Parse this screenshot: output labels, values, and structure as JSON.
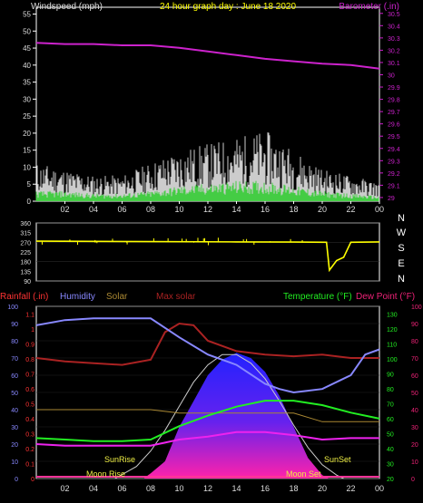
{
  "chart_data": [
    {
      "type": "line",
      "title": "24 hour graph day : June 18 2020",
      "ylabel_left": "Windspeed (mph)",
      "ylabel_right": "Barometer (.in)",
      "x_ticks": [
        "02",
        "04",
        "06",
        "08",
        "10",
        "12",
        "14",
        "16",
        "18",
        "20",
        "22",
        "00"
      ],
      "y_left_ticks": [
        "0",
        "5",
        "10",
        "15",
        "20",
        "25",
        "30",
        "35",
        "40",
        "45",
        "50",
        "55"
      ],
      "y_left_range": [
        0,
        57
      ],
      "y_right_ticks": [
        "29",
        "29.1",
        "29.2",
        "29.3",
        "29.4",
        "29.5",
        "29.6",
        "29.7",
        "29.8",
        "29.9",
        "30",
        "30.1",
        "30.2",
        "30.3",
        "30.4",
        "30.5"
      ],
      "y_right_range": [
        28.97,
        30.55
      ],
      "series": [
        {
          "name": "Barometer (.in)",
          "color": "#cc22cc",
          "axis": "right",
          "x": [
            0,
            2,
            4,
            6,
            8,
            10,
            12,
            14,
            16,
            18,
            20,
            22,
            24
          ],
          "y": [
            30.26,
            30.25,
            30.25,
            30.24,
            30.24,
            30.22,
            30.19,
            30.16,
            30.13,
            30.11,
            30.09,
            30.08,
            30.05
          ]
        },
        {
          "name": "gust",
          "color": "#ffffff",
          "axis": "left",
          "x": [
            0,
            2,
            4,
            6,
            8,
            10,
            12,
            14,
            16,
            18,
            20,
            22,
            24
          ],
          "y": [
            6,
            5,
            4,
            4,
            6,
            8,
            9,
            10,
            11,
            8,
            5,
            4,
            3
          ]
        },
        {
          "name": "average",
          "color": "#22cc22",
          "axis": "left",
          "x": [
            0,
            2,
            4,
            6,
            8,
            10,
            12,
            14,
            16,
            18,
            20,
            22,
            24
          ],
          "y": [
            2,
            2,
            1.5,
            1.5,
            2,
            3,
            3.5,
            4,
            4,
            3,
            2,
            1.5,
            1
          ]
        }
      ]
    },
    {
      "type": "line",
      "ylabel": "Wind direction",
      "y_ticks": [
        "360",
        "315",
        "270",
        "225",
        "180",
        "135",
        "90"
      ],
      "y_range": [
        90,
        360
      ],
      "direction_labels": [
        "N",
        "W",
        "S",
        "E",
        "N"
      ],
      "series": [
        {
          "name": "direction",
          "color": "#ffff00",
          "x": [
            0,
            8,
            14,
            18,
            20.3,
            20.5,
            21,
            21.5,
            22,
            24
          ],
          "y": [
            275,
            273,
            272,
            271,
            270,
            140,
            185,
            200,
            270,
            272
          ]
        }
      ]
    },
    {
      "type": "line",
      "legend": [
        "Rainfall (.in)",
        "Humidity",
        "Solar",
        "Max solar",
        "Temperature (°F)",
        "Dew Point (°F)"
      ],
      "y_rain_ticks": [
        "0",
        "0.1",
        "0.2",
        "0.3",
        "0.4",
        "0.5",
        "0.6",
        "0.7",
        "0.8",
        "0.9",
        "1",
        "1.1"
      ],
      "y_humidity_ticks": [
        "0",
        "10",
        "20",
        "30",
        "40",
        "50",
        "60",
        "70",
        "80",
        "90",
        "100"
      ],
      "y_temp_ticks": [
        "20",
        "30",
        "40",
        "50",
        "60",
        "70",
        "80",
        "90",
        "100",
        "110",
        "120",
        "130"
      ],
      "y_temp2_ticks": [
        "0",
        "10",
        "20",
        "30",
        "40",
        "50",
        "60",
        "70",
        "80",
        "90",
        "100"
      ],
      "annotations": [
        "SunRise",
        "SunSet",
        "Moon Rise",
        "Moon Set"
      ],
      "series": [
        {
          "name": "Humidity",
          "color": "#8888ff",
          "axis": "humidity",
          "x": [
            0,
            2,
            4,
            6,
            8,
            10,
            12,
            14,
            16,
            17,
            18,
            20,
            22,
            23,
            24
          ],
          "y": [
            89,
            92,
            93,
            93,
            93,
            82,
            72,
            66,
            55,
            52,
            50,
            52,
            60,
            72,
            75
          ]
        },
        {
          "name": "Temperature (°F)",
          "color": "#22ee22",
          "axis": "temp",
          "x": [
            0,
            2,
            4,
            6,
            8,
            10,
            12,
            14,
            16,
            18,
            20,
            22,
            24
          ],
          "y": [
            47,
            46,
            45,
            45,
            46,
            55,
            62,
            68,
            72,
            72,
            69,
            64,
            60
          ]
        },
        {
          "name": "Dew Point (°F)",
          "color": "#ee22ee",
          "axis": "temp",
          "x": [
            0,
            2,
            4,
            6,
            8,
            10,
            12,
            14,
            16,
            18,
            20,
            22,
            24
          ],
          "y": [
            43,
            42,
            42,
            42,
            42,
            46,
            48,
            51,
            51,
            49,
            46,
            47,
            47
          ]
        },
        {
          "name": "Max solar",
          "color": "#aa2222",
          "axis": "humidity",
          "x": [
            0,
            2,
            4,
            6,
            8,
            9,
            10,
            11,
            12,
            14,
            16,
            18,
            20,
            22,
            24
          ],
          "y": [
            70,
            68,
            67,
            66,
            69,
            85,
            90,
            89,
            80,
            74,
            72,
            71,
            72,
            70,
            70
          ]
        },
        {
          "name": "Solar",
          "color": "#aa8833",
          "axis": "humidity",
          "x": [
            0,
            2,
            4,
            6,
            8,
            10,
            12,
            14,
            16,
            18,
            20,
            22,
            24
          ],
          "y": [
            40,
            40,
            40,
            40,
            40,
            38,
            38,
            38,
            38,
            38,
            33,
            33,
            33
          ]
        },
        {
          "name": "Solar radiation",
          "color": "#3333ff",
          "axis": "humidity",
          "x": [
            7.5,
            8,
            9,
            10,
            11,
            12,
            13,
            14,
            15,
            16,
            17,
            18,
            19,
            20,
            20.5
          ],
          "y": [
            0,
            3,
            10,
            30,
            45,
            60,
            69,
            73,
            70,
            62,
            48,
            30,
            12,
            2,
            0
          ]
        },
        {
          "name": "Sun path",
          "color": "#cccccc",
          "axis": "humidity",
          "x": [
            5.5,
            7,
            8,
            9,
            10,
            11,
            12,
            13,
            14,
            15,
            16,
            17,
            18,
            19,
            20,
            21,
            21.5
          ],
          "y": [
            0,
            7,
            16,
            28,
            42,
            56,
            66,
            72,
            72,
            67,
            58,
            45,
            31,
            18,
            8,
            2,
            0
          ]
        }
      ]
    }
  ]
}
